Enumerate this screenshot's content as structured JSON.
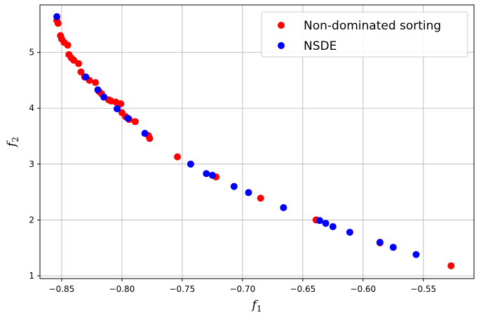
{
  "chart_data": {
    "type": "scatter",
    "xlabel": "f",
    "xlabel_sub": "1",
    "ylabel": "f",
    "ylabel_sub": "2",
    "xlim": [
      -0.868,
      -0.508
    ],
    "ylim": [
      0.95,
      5.85
    ],
    "xticks": [
      -0.85,
      -0.8,
      -0.75,
      -0.7,
      -0.65,
      -0.6,
      -0.55
    ],
    "xtick_labels": [
      "−0.85",
      "−0.80",
      "−0.75",
      "−0.70",
      "−0.65",
      "−0.60",
      "−0.55"
    ],
    "yticks": [
      1,
      2,
      3,
      4,
      5
    ],
    "ytick_labels": [
      "1",
      "2",
      "3",
      "4",
      "5"
    ],
    "grid": true,
    "legend_position": "top-right",
    "series": [
      {
        "name": "Non-dominated sorting",
        "color": "#ff0000",
        "points": [
          [
            -0.854,
            5.57
          ],
          [
            -0.853,
            5.52
          ],
          [
            -0.851,
            5.3
          ],
          [
            -0.85,
            5.24
          ],
          [
            -0.848,
            5.18
          ],
          [
            -0.845,
            5.13
          ],
          [
            -0.844,
            4.96
          ],
          [
            -0.842,
            4.9
          ],
          [
            -0.84,
            4.86
          ],
          [
            -0.836,
            4.8
          ],
          [
            -0.834,
            4.65
          ],
          [
            -0.831,
            4.56
          ],
          [
            -0.827,
            4.5
          ],
          [
            -0.822,
            4.46
          ],
          [
            -0.819,
            4.3
          ],
          [
            -0.817,
            4.26
          ],
          [
            -0.815,
            4.2
          ],
          [
            -0.811,
            4.15
          ],
          [
            -0.809,
            4.13
          ],
          [
            -0.805,
            4.11
          ],
          [
            -0.801,
            4.08
          ],
          [
            -0.8,
            3.92
          ],
          [
            -0.797,
            3.85
          ],
          [
            -0.794,
            3.8
          ],
          [
            -0.789,
            3.76
          ],
          [
            -0.778,
            3.51
          ],
          [
            -0.777,
            3.46
          ],
          [
            -0.754,
            3.13
          ],
          [
            -0.722,
            2.77
          ],
          [
            -0.685,
            2.39
          ],
          [
            -0.639,
            2.0
          ],
          [
            -0.586,
            1.59
          ],
          [
            -0.527,
            1.18
          ]
        ]
      },
      {
        "name": "NSDE",
        "color": "#0000ff",
        "points": [
          [
            -0.854,
            5.64
          ],
          [
            -0.83,
            4.56
          ],
          [
            -0.82,
            4.33
          ],
          [
            -0.815,
            4.2
          ],
          [
            -0.804,
            3.99
          ],
          [
            -0.795,
            3.82
          ],
          [
            -0.781,
            3.55
          ],
          [
            -0.743,
            3.0
          ],
          [
            -0.73,
            2.83
          ],
          [
            -0.725,
            2.8
          ],
          [
            -0.707,
            2.6
          ],
          [
            -0.695,
            2.49
          ],
          [
            -0.666,
            2.22
          ],
          [
            -0.636,
            1.99
          ],
          [
            -0.631,
            1.94
          ],
          [
            -0.625,
            1.88
          ],
          [
            -0.611,
            1.78
          ],
          [
            -0.586,
            1.6
          ],
          [
            -0.575,
            1.51
          ],
          [
            -0.556,
            1.38
          ]
        ]
      }
    ]
  }
}
